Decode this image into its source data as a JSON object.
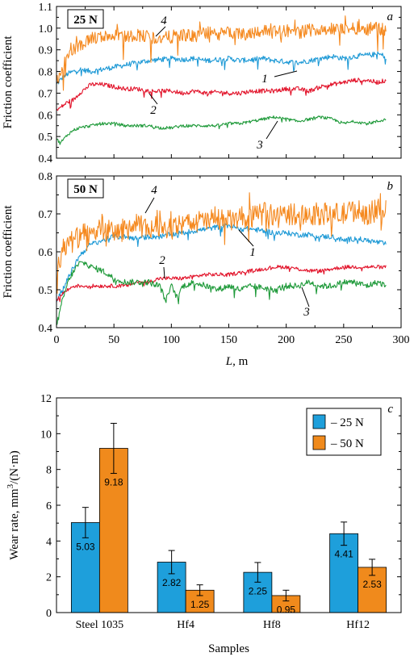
{
  "chart_data": [
    {
      "type": "line",
      "panel": "a",
      "load": "25 N",
      "ylabel": "Friction coefficient",
      "xlim": [
        0,
        300
      ],
      "ylim": [
        0.4,
        1.1
      ],
      "yticks": [
        "0.4",
        "0.5",
        "0.6",
        "0.7",
        "0.8",
        "0.9",
        "1.0",
        "1.1"
      ],
      "series": [
        {
          "name": "1",
          "color": "#1f9ad6",
          "x": [
            0,
            5,
            10,
            15,
            20,
            30,
            40,
            50,
            60,
            70,
            80,
            90,
            100,
            110,
            120,
            130,
            140,
            150,
            160,
            170,
            180,
            190,
            200,
            210,
            220,
            230,
            240,
            250,
            260,
            270,
            280,
            287
          ],
          "y": [
            0.74,
            0.77,
            0.79,
            0.8,
            0.81,
            0.8,
            0.81,
            0.82,
            0.83,
            0.84,
            0.85,
            0.855,
            0.86,
            0.855,
            0.86,
            0.85,
            0.855,
            0.86,
            0.85,
            0.855,
            0.86,
            0.85,
            0.845,
            0.84,
            0.85,
            0.86,
            0.87,
            0.86,
            0.87,
            0.875,
            0.88,
            0.87
          ]
        },
        {
          "name": "2",
          "color": "#e2132a",
          "x": [
            0,
            5,
            10,
            15,
            20,
            30,
            40,
            50,
            60,
            70,
            80,
            90,
            100,
            110,
            120,
            130,
            140,
            150,
            160,
            170,
            180,
            190,
            200,
            210,
            220,
            230,
            240,
            250,
            260,
            270,
            280,
            287
          ],
          "y": [
            0.62,
            0.64,
            0.66,
            0.67,
            0.7,
            0.74,
            0.74,
            0.73,
            0.72,
            0.72,
            0.71,
            0.71,
            0.71,
            0.7,
            0.71,
            0.7,
            0.705,
            0.7,
            0.7,
            0.71,
            0.71,
            0.71,
            0.72,
            0.72,
            0.71,
            0.73,
            0.74,
            0.75,
            0.76,
            0.76,
            0.75,
            0.76
          ]
        },
        {
          "name": "3",
          "color": "#1f9a3a",
          "x": [
            0,
            3,
            5,
            10,
            15,
            20,
            30,
            40,
            50,
            60,
            70,
            80,
            90,
            100,
            110,
            120,
            130,
            140,
            150,
            160,
            170,
            180,
            190,
            200,
            210,
            220,
            230,
            240,
            250,
            260,
            270,
            280,
            287
          ],
          "y": [
            0.49,
            0.47,
            0.48,
            0.51,
            0.53,
            0.54,
            0.55,
            0.56,
            0.56,
            0.55,
            0.55,
            0.55,
            0.54,
            0.54,
            0.55,
            0.55,
            0.55,
            0.55,
            0.56,
            0.56,
            0.57,
            0.58,
            0.59,
            0.58,
            0.57,
            0.58,
            0.59,
            0.58,
            0.56,
            0.57,
            0.56,
            0.57,
            0.58
          ]
        },
        {
          "name": "4",
          "color": "#f5891f",
          "x": [
            0,
            5,
            10,
            15,
            20,
            30,
            40,
            50,
            60,
            70,
            80,
            90,
            100,
            110,
            120,
            130,
            140,
            150,
            160,
            170,
            180,
            190,
            200,
            210,
            220,
            230,
            240,
            250,
            260,
            270,
            280,
            287
          ],
          "y": [
            0.75,
            0.82,
            0.87,
            0.9,
            0.92,
            0.95,
            0.96,
            0.97,
            0.96,
            0.97,
            0.96,
            0.95,
            0.96,
            0.97,
            0.96,
            0.98,
            0.97,
            0.98,
            0.97,
            0.98,
            0.99,
            0.98,
            0.99,
            0.98,
            0.99,
            1.0,
            0.99,
            1.0,
            1.0,
            1.0,
            1.0,
            0.99
          ]
        }
      ]
    },
    {
      "type": "line",
      "panel": "b",
      "load": "50 N",
      "ylabel": "Friction coefficient",
      "xlabel_italic": "L",
      "xlabel": ", m",
      "xlim": [
        0,
        300
      ],
      "ylim": [
        0.4,
        0.8
      ],
      "xticks": [
        "0",
        "50",
        "100",
        "150",
        "200",
        "250",
        "300"
      ],
      "yticks": [
        "0.4",
        "0.5",
        "0.6",
        "0.7",
        "0.8"
      ],
      "series": [
        {
          "name": "1",
          "color": "#1f9ad6",
          "x": [
            0,
            5,
            10,
            15,
            20,
            30,
            40,
            50,
            60,
            70,
            80,
            90,
            100,
            110,
            120,
            130,
            140,
            150,
            160,
            170,
            180,
            190,
            200,
            210,
            220,
            230,
            240,
            250,
            260,
            270,
            280,
            287
          ],
          "y": [
            0.47,
            0.5,
            0.53,
            0.56,
            0.59,
            0.62,
            0.63,
            0.64,
            0.64,
            0.635,
            0.64,
            0.64,
            0.645,
            0.65,
            0.655,
            0.66,
            0.665,
            0.67,
            0.66,
            0.66,
            0.655,
            0.65,
            0.65,
            0.645,
            0.645,
            0.64,
            0.64,
            0.63,
            0.635,
            0.63,
            0.625,
            0.62
          ]
        },
        {
          "name": "2",
          "color": "#e2132a",
          "x": [
            0,
            5,
            10,
            15,
            20,
            30,
            40,
            50,
            60,
            70,
            80,
            90,
            100,
            110,
            120,
            130,
            140,
            150,
            160,
            170,
            180,
            190,
            200,
            210,
            220,
            230,
            240,
            250,
            260,
            270,
            280,
            287
          ],
          "y": [
            0.47,
            0.49,
            0.5,
            0.51,
            0.51,
            0.51,
            0.51,
            0.51,
            0.51,
            0.52,
            0.52,
            0.53,
            0.53,
            0.53,
            0.535,
            0.54,
            0.54,
            0.54,
            0.545,
            0.55,
            0.555,
            0.56,
            0.56,
            0.555,
            0.55,
            0.55,
            0.555,
            0.56,
            0.56,
            0.56,
            0.56,
            0.56
          ]
        },
        {
          "name": "3",
          "color": "#1f9a3a",
          "x": [
            0,
            3,
            5,
            10,
            15,
            20,
            25,
            30,
            40,
            50,
            60,
            70,
            80,
            90,
            95,
            100,
            105,
            110,
            120,
            130,
            140,
            150,
            160,
            170,
            180,
            190,
            200,
            210,
            220,
            230,
            240,
            250,
            260,
            270,
            280,
            287
          ],
          "y": [
            0.41,
            0.44,
            0.47,
            0.52,
            0.55,
            0.57,
            0.57,
            0.56,
            0.55,
            0.53,
            0.52,
            0.52,
            0.52,
            0.51,
            0.47,
            0.51,
            0.48,
            0.51,
            0.52,
            0.51,
            0.5,
            0.51,
            0.5,
            0.51,
            0.505,
            0.5,
            0.51,
            0.51,
            0.52,
            0.51,
            0.51,
            0.52,
            0.52,
            0.51,
            0.52,
            0.51
          ]
        },
        {
          "name": "4",
          "color": "#f5891f",
          "x": [
            0,
            5,
            10,
            15,
            20,
            30,
            40,
            50,
            60,
            70,
            80,
            90,
            100,
            110,
            120,
            130,
            140,
            150,
            160,
            170,
            180,
            190,
            200,
            210,
            220,
            230,
            240,
            250,
            260,
            270,
            280,
            287
          ],
          "y": [
            0.55,
            0.6,
            0.62,
            0.63,
            0.64,
            0.65,
            0.66,
            0.65,
            0.66,
            0.67,
            0.66,
            0.67,
            0.66,
            0.67,
            0.68,
            0.68,
            0.69,
            0.68,
            0.69,
            0.69,
            0.7,
            0.69,
            0.7,
            0.7,
            0.7,
            0.7,
            0.7,
            0.7,
            0.71,
            0.7,
            0.71,
            0.71
          ]
        }
      ]
    },
    {
      "type": "bar",
      "panel": "c",
      "ylabel": "Wear rate, mm³/(N·m)",
      "ylabel_base": "Wear rate, mm",
      "ylabel_sup": "3",
      "ylabel_tail": "/(N·m)",
      "xlabel": "Samples",
      "ylim": [
        0,
        12
      ],
      "yticks": [
        "0",
        "2",
        "4",
        "6",
        "8",
        "10",
        "12"
      ],
      "categories": [
        "Steel 1035",
        "Hf4",
        "Hf8",
        "Hf12"
      ],
      "legend_position": "top-right",
      "series": [
        {
          "name": "– 25 N",
          "color": "#1e9fdb",
          "values": [
            5.03,
            2.82,
            2.25,
            4.41
          ],
          "labels": [
            "5.03",
            "2.82",
            "2.25",
            "4.41"
          ],
          "errors": [
            0.85,
            0.65,
            0.55,
            0.65
          ]
        },
        {
          "name": "– 50 N",
          "color": "#f08a1c",
          "values": [
            9.18,
            1.25,
            0.95,
            2.53
          ],
          "labels": [
            "9.18",
            "1.25",
            "0.95",
            "2.53"
          ],
          "errors": [
            1.4,
            0.3,
            0.3,
            0.45
          ]
        }
      ]
    }
  ]
}
